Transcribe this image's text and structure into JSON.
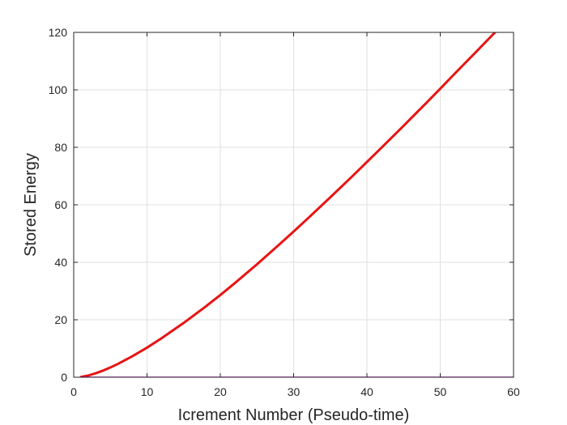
{
  "chart_data": {
    "type": "line",
    "title": "",
    "xlabel": "Icrement Number (Pseudo-time)",
    "ylabel": "Stored Energy",
    "xlim": [
      0,
      60
    ],
    "ylim": [
      0,
      120
    ],
    "xticks": [
      0,
      10,
      20,
      30,
      40,
      50,
      60
    ],
    "yticks": [
      0,
      20,
      40,
      60,
      80,
      100,
      120
    ],
    "xtick_labels": [
      "0",
      "10",
      "20",
      "30",
      "40",
      "50",
      "60"
    ],
    "ytick_labels": [
      "0",
      "20",
      "40",
      "60",
      "80",
      "100",
      "120"
    ],
    "grid": true,
    "series": [
      {
        "color": "#e81414",
        "x": [
          1,
          2,
          3,
          4,
          5,
          6,
          8,
          10,
          12,
          15,
          18,
          20,
          22,
          25,
          28,
          30,
          32,
          35,
          38,
          40,
          42,
          45,
          48,
          50,
          52,
          55,
          58,
          60
        ],
        "y": [
          0.1,
          0.6,
          1.4,
          2.3,
          3.4,
          4.6,
          7.3,
          10.3,
          13.6,
          18.9,
          24.6,
          28.6,
          32.8,
          39.3,
          46.1,
          50.7,
          55.4,
          62.6,
          69.9,
          74.9,
          79.9,
          87.5,
          95.2,
          100.4,
          105.7,
          113.5,
          121.4,
          126.8
        ]
      },
      {
        "color": "#cc00cc",
        "x": [
          1,
          60
        ],
        "y": [
          0,
          0
        ]
      }
    ]
  }
}
